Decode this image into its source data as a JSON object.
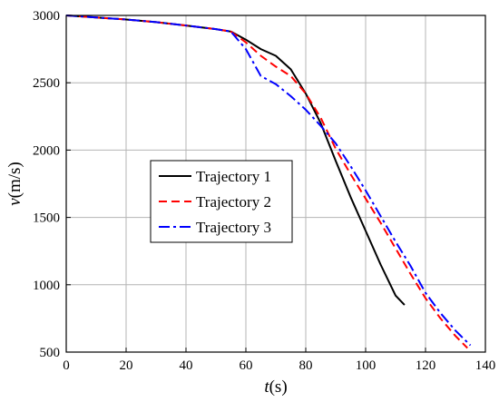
{
  "chart_data": {
    "type": "line",
    "xlabel": "t(s)",
    "xlabel_var": "t",
    "xlabel_unit": "(s)",
    "ylabel": "v(m/s)",
    "ylabel_var": "v",
    "ylabel_unit": "(m/s)",
    "xlim": [
      0,
      140
    ],
    "ylim": [
      500,
      3000
    ],
    "xticks": [
      0,
      20,
      40,
      60,
      80,
      100,
      120,
      140
    ],
    "yticks": [
      500,
      1000,
      1500,
      2000,
      2500,
      3000
    ],
    "xtick_labels": [
      "0",
      "20",
      "40",
      "60",
      "80",
      "100",
      "120",
      "140"
    ],
    "ytick_labels": [
      "500",
      "1000",
      "1500",
      "2000",
      "2500",
      "3000"
    ],
    "grid": true,
    "legend_position": "center-left",
    "series": [
      {
        "name": "Trajectory 1",
        "color": "#000000",
        "style": "solid",
        "x": [
          0,
          10,
          20,
          30,
          40,
          50,
          55,
          60,
          65,
          70,
          75,
          80,
          85,
          90,
          95,
          100,
          105,
          110,
          113
        ],
        "y": [
          3000,
          2985,
          2970,
          2950,
          2925,
          2898,
          2880,
          2820,
          2750,
          2700,
          2600,
          2420,
          2200,
          1920,
          1650,
          1400,
          1150,
          920,
          850
        ]
      },
      {
        "name": "Trajectory 2",
        "color": "#ff0000",
        "style": "dashed",
        "x": [
          0,
          10,
          20,
          30,
          40,
          50,
          55,
          60,
          65,
          70,
          75,
          80,
          85,
          90,
          95,
          100,
          105,
          110,
          115,
          120,
          125,
          130,
          134
        ],
        "y": [
          3000,
          2985,
          2970,
          2950,
          2925,
          2898,
          2880,
          2800,
          2700,
          2620,
          2550,
          2420,
          2240,
          2010,
          1820,
          1640,
          1460,
          1270,
          1080,
          900,
          750,
          620,
          530
        ]
      },
      {
        "name": "Trajectory 3",
        "color": "#0000ff",
        "style": "dashdot",
        "x": [
          0,
          10,
          20,
          30,
          40,
          50,
          55,
          60,
          65,
          70,
          75,
          80,
          85,
          90,
          95,
          100,
          105,
          110,
          115,
          120,
          125,
          130,
          135
        ],
        "y": [
          3000,
          2985,
          2970,
          2950,
          2925,
          2898,
          2880,
          2750,
          2550,
          2490,
          2400,
          2300,
          2180,
          2050,
          1880,
          1700,
          1510,
          1320,
          1140,
          940,
          790,
          660,
          550
        ]
      }
    ]
  }
}
